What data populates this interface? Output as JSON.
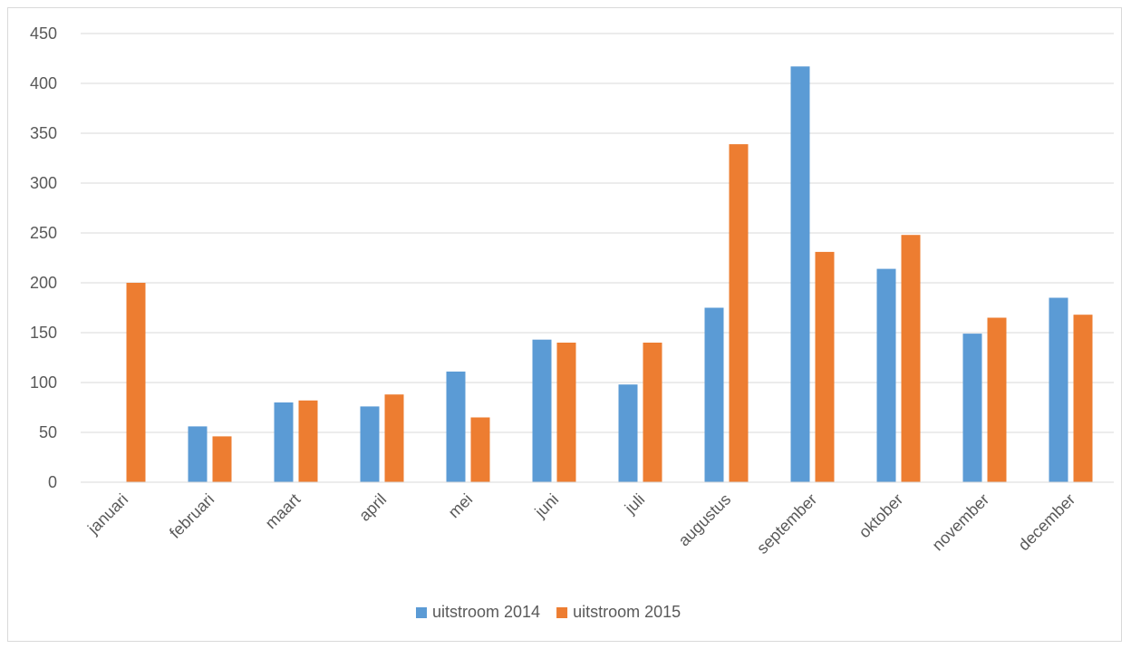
{
  "chart_data": {
    "type": "bar",
    "title": "",
    "xlabel": "",
    "ylabel": "",
    "categories": [
      "januari",
      "februari",
      "maart",
      "april",
      "mei",
      "juni",
      "juli",
      "augustus",
      "september",
      "oktober",
      "november",
      "december"
    ],
    "series": [
      {
        "name": "uitstroom 2014",
        "color": "#5b9bd5",
        "values": [
          null,
          56,
          80,
          76,
          111,
          143,
          98,
          175,
          417,
          214,
          149,
          185
        ]
      },
      {
        "name": "uitstroom 2015",
        "color": "#ed7d31",
        "values": [
          200,
          46,
          82,
          88,
          65,
          140,
          140,
          339,
          231,
          248,
          165,
          168
        ]
      }
    ],
    "ylim": [
      0,
      450
    ],
    "yticks": [
      0,
      50,
      100,
      150,
      200,
      250,
      300,
      350,
      400,
      450
    ],
    "grid": true,
    "legend_position": "bottom"
  }
}
